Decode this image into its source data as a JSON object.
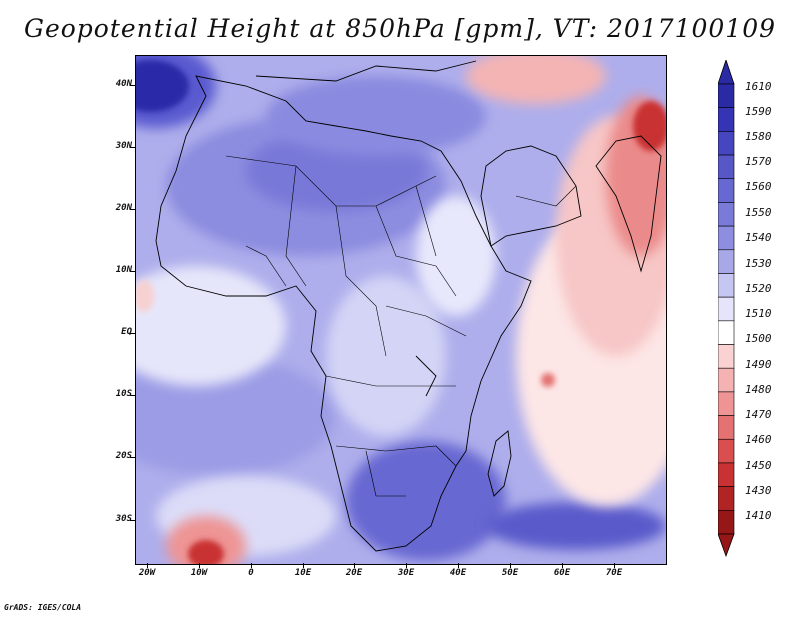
{
  "title": "Geopotential Height at 850hPa [gpm], VT: 2017100109",
  "credit": "GrADS: IGES/COLA",
  "map": {
    "lat_range": [
      -37,
      45
    ],
    "lon_range": [
      -22,
      80
    ],
    "y_ticks": [
      "40N",
      "30N",
      "20N",
      "10N",
      "EQ",
      "10S",
      "20S",
      "30S"
    ],
    "x_ticks": [
      "20W",
      "10W",
      "0",
      "10E",
      "20E",
      "30E",
      "40E",
      "50E",
      "60E",
      "70E"
    ],
    "features": {
      "high_region_nw_atlantic": "Azores high, around 1590-1600 gpm",
      "low_region_sw_atlantic": "local low near 5W 35S, around 1440-1480 gpm",
      "low_region_arabia_india": "low heights over Arabia, Iran and India, around 1470-1500 gpm",
      "low_spot_mascarene": "small low near 57E 8S"
    }
  },
  "colorbar": {
    "levels": [
      "1610",
      "1590",
      "1580",
      "1570",
      "1560",
      "1550",
      "1540",
      "1530",
      "1520",
      "1510",
      "1500",
      "1490",
      "1480",
      "1470",
      "1460",
      "1450",
      "1430",
      "1410"
    ],
    "colors": [
      "#2a2aa5",
      "#3434b5",
      "#4646c0",
      "#5757c8",
      "#6868d2",
      "#7a7ad9",
      "#8e8ee0",
      "#a8a8e9",
      "#c6c6f2",
      "#e4e4fa",
      "#ffffff",
      "#fad2d2",
      "#f4b2b2",
      "#ee9494",
      "#e47272",
      "#d94e4e",
      "#c93232",
      "#b02424",
      "#951717"
    ]
  }
}
